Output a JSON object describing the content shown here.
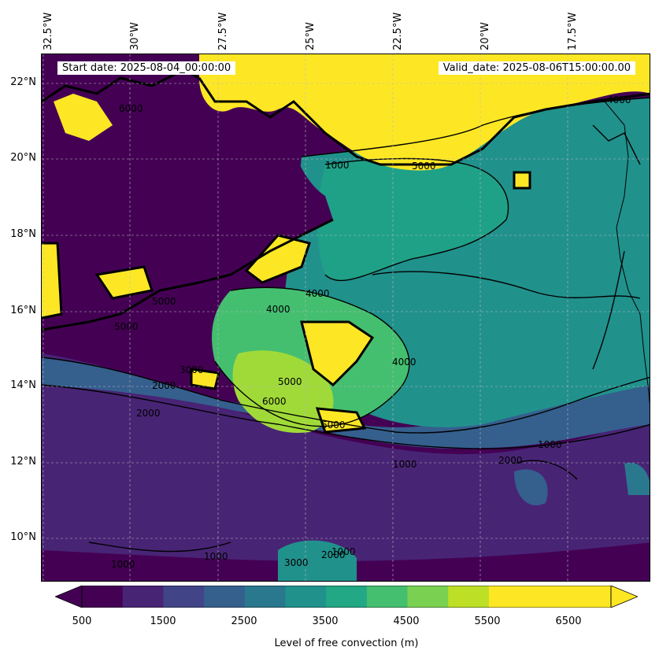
{
  "header": {
    "start_date": "Start date: 2025-08-04_00:00:00",
    "valid_date": "Valid_date: 2025-08-06T15:00:00.00"
  },
  "axes": {
    "lon_labels": [
      "32.5°W",
      "30°W",
      "27.5°W",
      "25°W",
      "22.5°W",
      "20°W",
      "17.5°W"
    ],
    "lat_labels": [
      "22°N",
      "20°N",
      "18°N",
      "16°N",
      "14°N",
      "12°N",
      "10°N"
    ]
  },
  "contour_labels": [
    "6000",
    "5000",
    "4000",
    "5000",
    "4000",
    "1000",
    "4000",
    "5000",
    "2000",
    "3000",
    "5000",
    "6000",
    "2000",
    "1000",
    "2000",
    "1000",
    "1000",
    "3000",
    "2000",
    "1000",
    "1000",
    "4000",
    "6000"
  ],
  "colorbar": {
    "title": "Level of free convection (m)",
    "tick_labels": [
      "500",
      "1500",
      "2500",
      "3500",
      "4500",
      "5500",
      "6500"
    ],
    "levels": [
      500,
      1000,
      1500,
      2000,
      2500,
      3000,
      3500,
      4000,
      4500,
      5000,
      5500,
      6000,
      6500,
      7000
    ],
    "colors": [
      "#440154",
      "#482475",
      "#414487",
      "#355f8d",
      "#2a788e",
      "#21918c",
      "#22a884",
      "#44bf70",
      "#7ad151",
      "#bddf26",
      "#fde725",
      "#fde725",
      "#fde725"
    ],
    "under_color": "#440154",
    "over_color": "#fde725"
  },
  "palette": {
    "deep": "#440154",
    "purple": "#46337e",
    "blue": "#365c8d",
    "teal": "#277f8e",
    "teal2": "#1fa187",
    "green": "#4ac16d",
    "lime": "#a0da39",
    "yellow": "#fde725"
  }
}
